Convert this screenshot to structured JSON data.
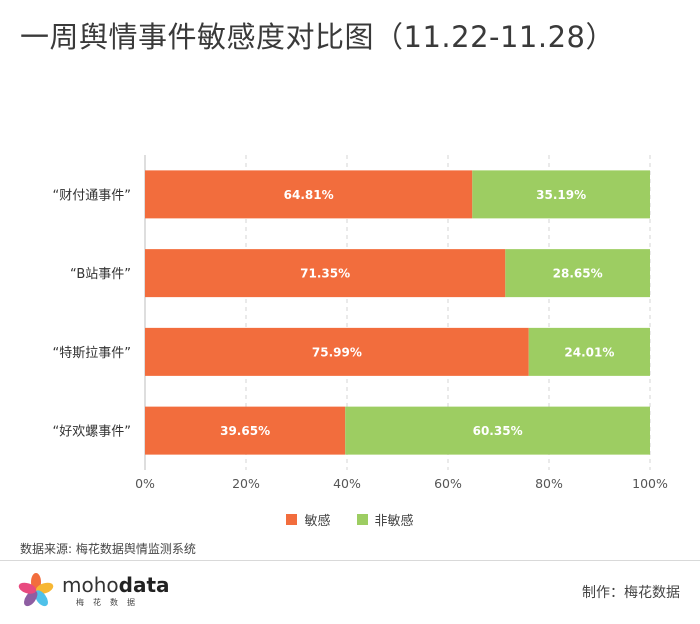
{
  "title": "一周舆情事件敏感度对比图（11.22-11.28）",
  "legend": [
    {
      "label": "敏感",
      "color": "#f26d3d"
    },
    {
      "label": "非敏感",
      "color": "#9dcd62"
    }
  ],
  "source": "数据来源: 梅花数据舆情监测系统",
  "footer": {
    "brand_prefix": "moho",
    "brand_suffix": "data",
    "brand_sub": "梅花数据",
    "credit": "制作：梅花数据"
  },
  "chart_data": {
    "type": "bar",
    "orientation": "horizontal",
    "stacked": true,
    "categories": [
      "“财付通事件”",
      "“B站事件”",
      "“特斯拉事件”",
      "“好欢螺事件”"
    ],
    "series": [
      {
        "name": "敏感",
        "color": "#f26d3d",
        "values": [
          64.81,
          71.35,
          75.99,
          39.65
        ],
        "labels": [
          "64.81%",
          "71.35%",
          "75.99%",
          "39.65%"
        ]
      },
      {
        "name": "非敏感",
        "color": "#9dcd62",
        "values": [
          35.19,
          28.65,
          24.01,
          60.35
        ],
        "labels": [
          "35.19%",
          "28.65%",
          "24.01%",
          "60.35%"
        ]
      }
    ],
    "xlim": [
      0,
      100
    ],
    "x_ticks": [
      0,
      20,
      40,
      60,
      80,
      100
    ],
    "x_tick_labels": [
      "0%",
      "20%",
      "40%",
      "60%",
      "80%",
      "100%"
    ],
    "grid": "vertical dashed",
    "legend_position": "bottom"
  }
}
